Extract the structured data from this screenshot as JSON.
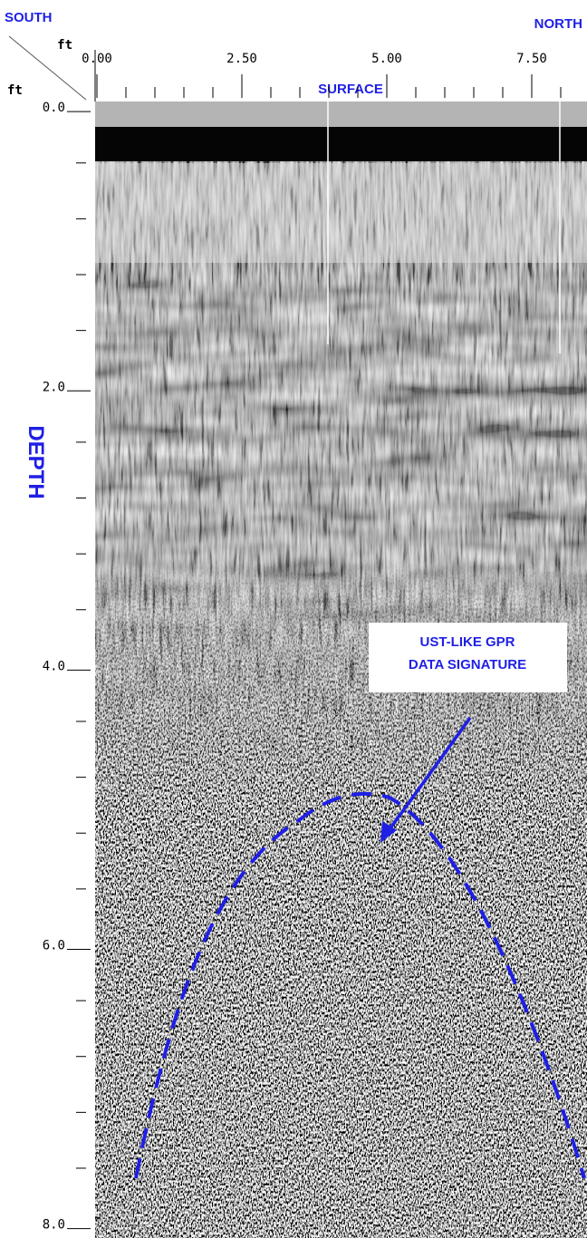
{
  "labels": {
    "left": "SOUTH",
    "right": "NORTH",
    "x_unit": "ft",
    "y_unit": "ft",
    "surface": "SURFACE",
    "depth": "DEPTH"
  },
  "x_axis": {
    "lim": [
      0,
      8.5
    ],
    "ticks": [
      {
        "value": 0,
        "label": "0.00"
      },
      {
        "value": 2.5,
        "label": "2.50"
      },
      {
        "value": 5,
        "label": "5.00"
      },
      {
        "value": 7.5,
        "label": "7.50"
      }
    ],
    "minor_ticks": [
      0.5,
      1,
      1.5,
      2,
      3,
      3.5,
      4,
      4.5,
      5.5,
      6,
      6.5,
      7,
      8
    ]
  },
  "y_axis": {
    "lim": [
      -0.04,
      8.1
    ],
    "ticks": [
      {
        "value": 0,
        "label": "0.0"
      },
      {
        "value": 2,
        "label": "2.0"
      },
      {
        "value": 4,
        "label": "4.0"
      },
      {
        "value": 6,
        "label": "6.0"
      },
      {
        "value": 8,
        "label": "8.0"
      }
    ],
    "minor_ticks": [
      0.4,
      0.8,
      1.2,
      1.6,
      2.4,
      2.8,
      3.2,
      3.6,
      4.4,
      4.8,
      5.2,
      5.6,
      6.4,
      6.8,
      7.2,
      7.6
    ]
  },
  "annotation": {
    "lines": [
      "UST-LIKE GPR",
      "DATA SIGNATURE"
    ]
  }
}
